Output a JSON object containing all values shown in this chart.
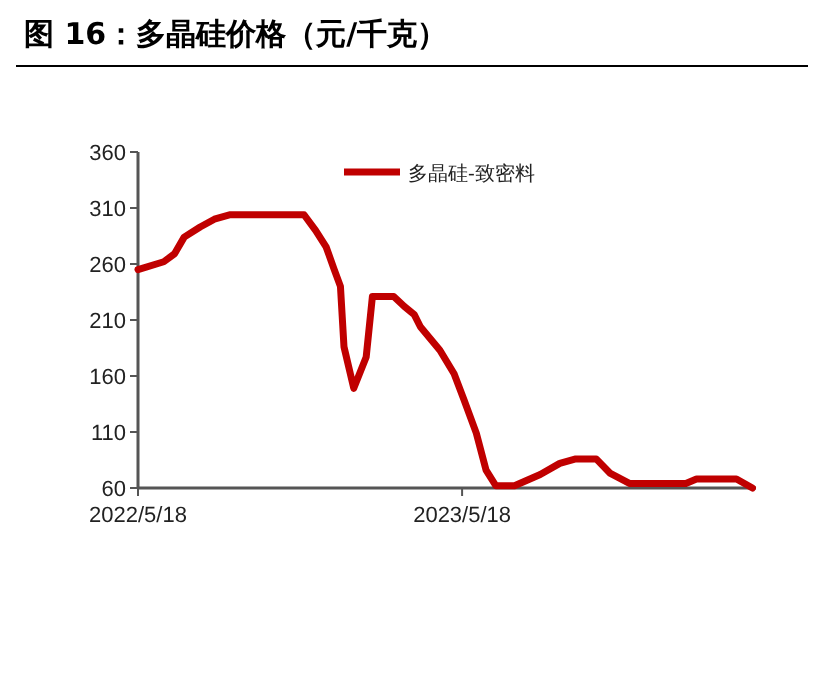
{
  "chart_data": {
    "type": "line",
    "title": "图 16：多晶硅价格（元/千克）",
    "x": [
      "2022-05-18",
      "2022-06-16",
      "2022-06-28",
      "2022-07-09",
      "2022-07-27",
      "2022-08-12",
      "2022-08-30",
      "2022-11-21",
      "2022-12-04",
      "2022-12-16",
      "2022-12-25",
      "2023-01-01",
      "2023-01-05",
      "2023-01-16",
      "2023-01-30",
      "2023-02-06",
      "2023-03-02",
      "2023-03-14",
      "2023-03-25",
      "2023-04-01",
      "2023-04-23",
      "2023-05-09",
      "2023-05-20",
      "2023-06-03",
      "2023-06-14",
      "2023-06-25",
      "2023-07-16",
      "2023-08-14",
      "2023-09-05",
      "2023-09-23",
      "2023-10-16",
      "2023-11-01",
      "2023-11-23",
      "2024-01-25",
      "2024-02-06",
      "2024-03-22",
      "2024-04-09"
    ],
    "series": [
      {
        "name": "多晶硅-致密料",
        "color": "#c00000",
        "values": [
          255,
          262,
          269,
          284,
          293,
          300,
          304,
          304,
          290,
          275,
          255,
          240,
          186,
          149,
          177,
          231,
          231,
          222,
          215,
          204,
          183,
          162,
          139,
          109,
          76,
          62,
          62,
          72,
          82,
          86,
          86,
          73,
          64,
          64,
          68,
          68,
          60
        ]
      }
    ],
    "xlim": [
      "2022-05-18",
      "2024-04-13"
    ],
    "xticks": [
      {
        "value": "2022-05-18",
        "label": "2022/5/18"
      },
      {
        "value": "2023-05-18",
        "label": "2023/5/18"
      }
    ],
    "ylim": [
      60,
      360
    ],
    "yticks": [
      60,
      110,
      160,
      210,
      260,
      310,
      360
    ],
    "legend": "top right"
  }
}
